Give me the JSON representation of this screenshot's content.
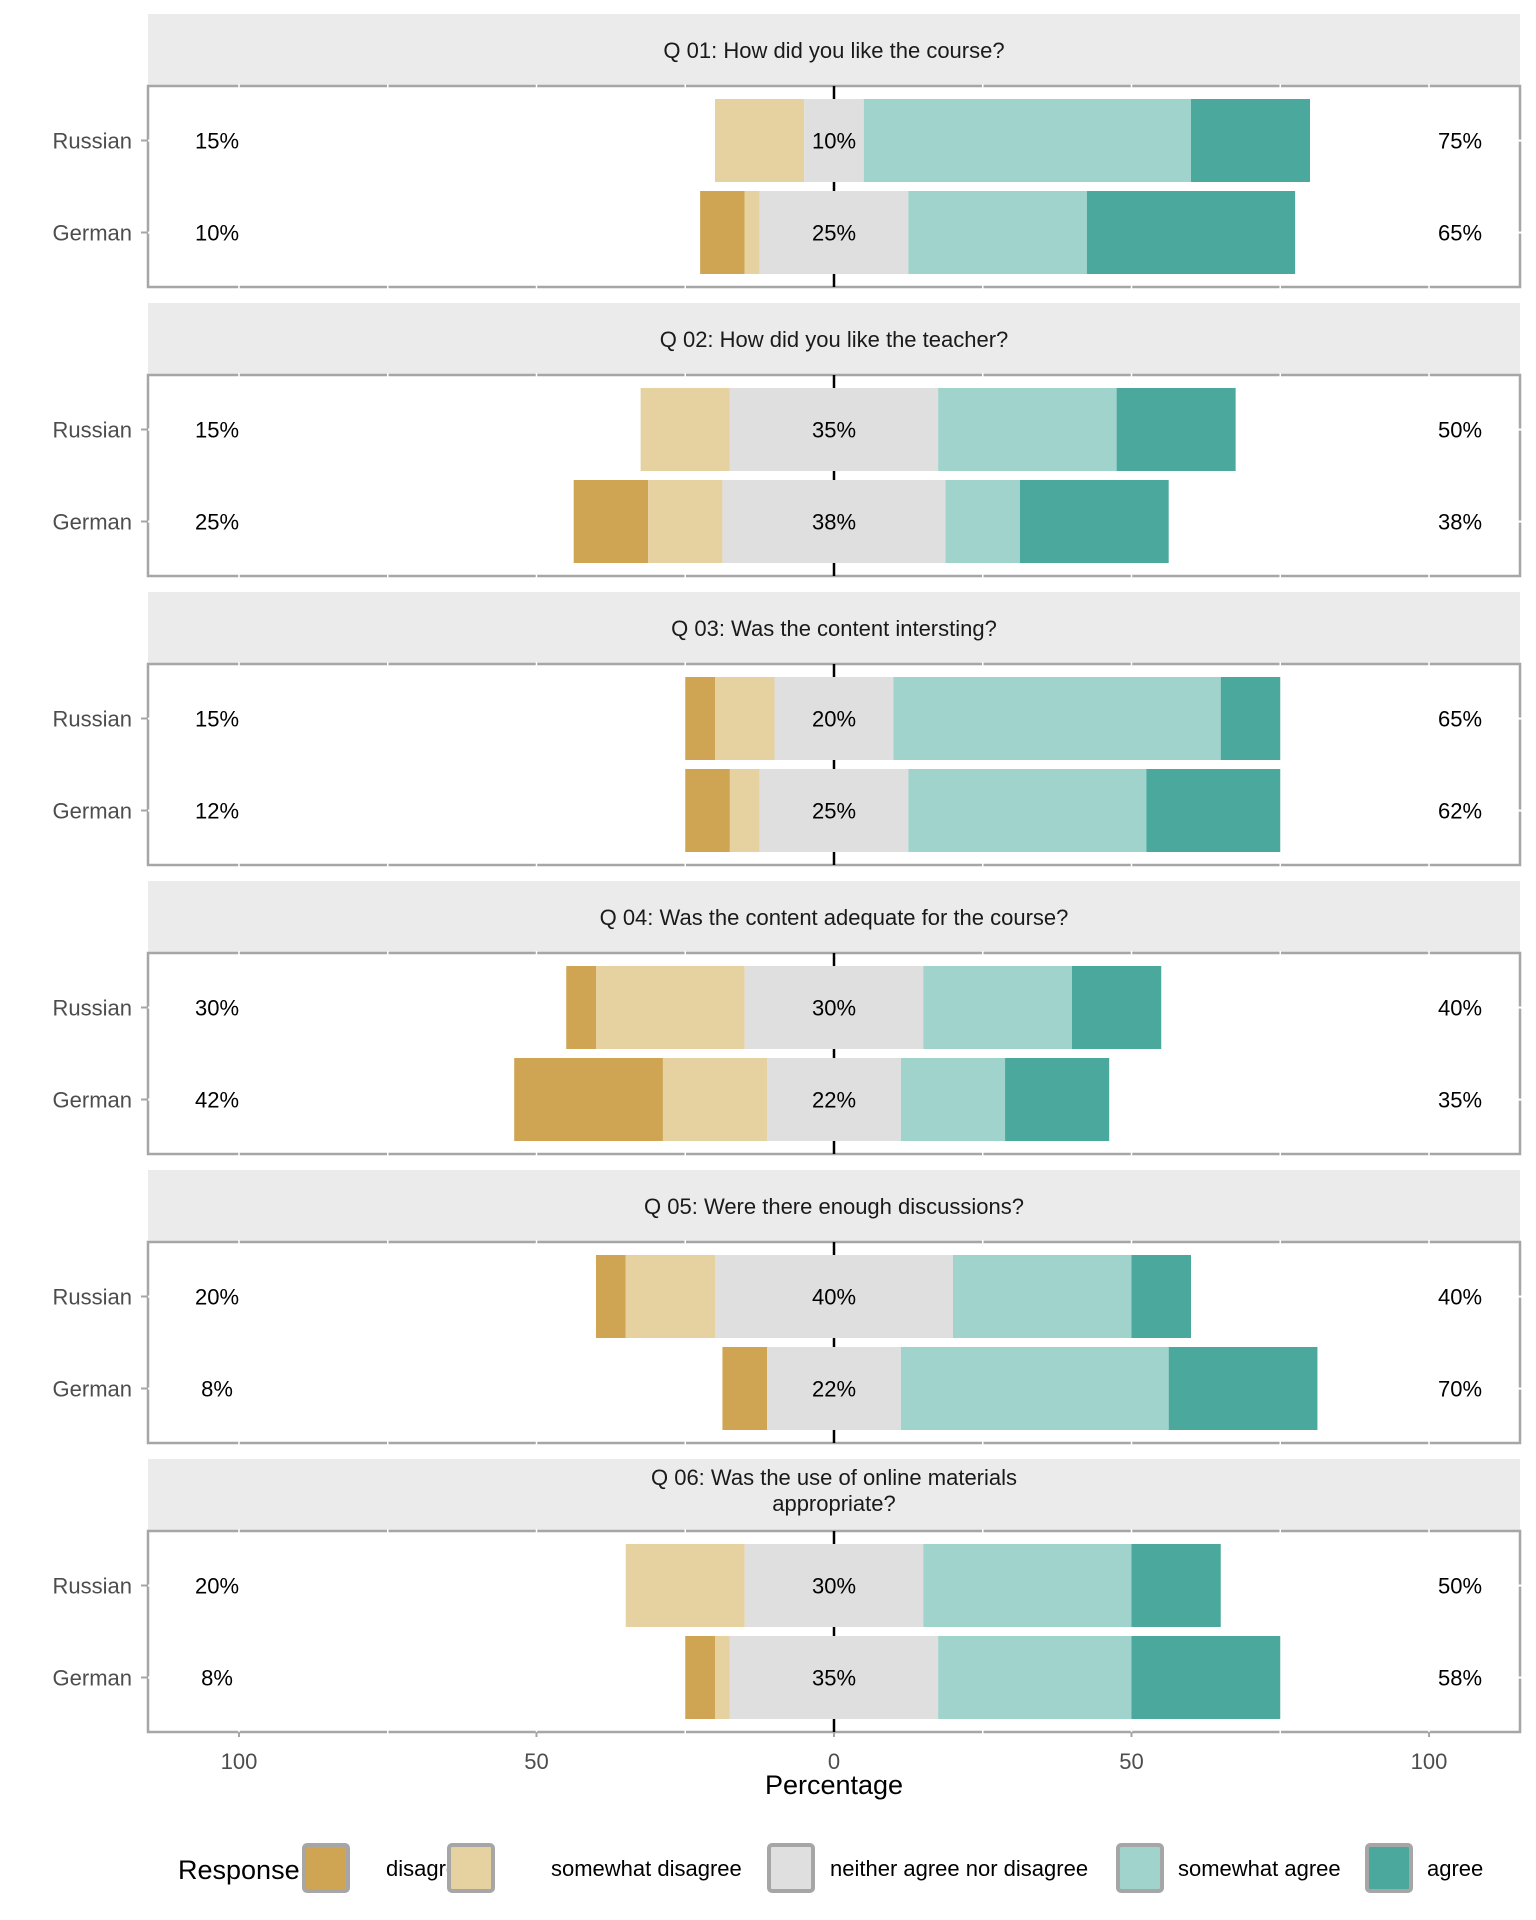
{
  "chart_data": {
    "type": "bar",
    "subtype": "diverging-stacked-horizontal-facetted",
    "xlabel": "Percentage",
    "ylabel": "",
    "xlim": [
      -115,
      115
    ],
    "x_ticks": [
      -100,
      -50,
      0,
      50,
      100
    ],
    "x_tick_labels": [
      "100",
      "50",
      "0",
      "50",
      "100"
    ],
    "grid": true,
    "legend": {
      "title": "Response",
      "placement": "bottom",
      "entries": [
        {
          "name": "disagree",
          "color": "#CFA553"
        },
        {
          "name": "somewhat disagree",
          "color": "#E6D2A1"
        },
        {
          "name": "neither agree nor disagree",
          "color": "#DFDFDF"
        },
        {
          "name": "somewhat agree",
          "color": "#9FD3CC"
        },
        {
          "name": "agree",
          "color": "#4BA89C"
        }
      ]
    },
    "categories": [
      "Russian",
      "German"
    ],
    "series_names": [
      "disagree",
      "somewhat disagree",
      "neither agree nor disagree",
      "somewhat agree",
      "agree"
    ],
    "panels": [
      {
        "title": "Q 01: How did you like the course?",
        "rows": [
          {
            "group": "Russian",
            "values": [
              0,
              15,
              10,
              55,
              20
            ],
            "low_label": "15%",
            "neutral_label": "10%",
            "high_label": "75%"
          },
          {
            "group": "German",
            "values": [
              7.5,
              2.5,
              25,
              30,
              35
            ],
            "low_label": "10%",
            "neutral_label": "25%",
            "high_label": "65%"
          }
        ]
      },
      {
        "title": "Q 02: How did you like the teacher?",
        "rows": [
          {
            "group": "Russian",
            "values": [
              0,
              15,
              35,
              30,
              20
            ],
            "low_label": "15%",
            "neutral_label": "35%",
            "high_label": "50%"
          },
          {
            "group": "German",
            "values": [
              12.5,
              12.5,
              37.5,
              12.5,
              25
            ],
            "low_label": "25%",
            "neutral_label": "38%",
            "high_label": "38%"
          }
        ]
      },
      {
        "title": "Q 03: Was the content intersting?",
        "rows": [
          {
            "group": "Russian",
            "values": [
              5,
              10,
              20,
              55,
              10
            ],
            "low_label": "15%",
            "neutral_label": "20%",
            "high_label": "65%"
          },
          {
            "group": "German",
            "values": [
              7.5,
              5,
              25,
              40,
              22.5
            ],
            "low_label": "12%",
            "neutral_label": "25%",
            "high_label": "62%"
          }
        ]
      },
      {
        "title": "Q 04: Was the content adequate for the course?",
        "rows": [
          {
            "group": "Russian",
            "values": [
              5,
              25,
              30,
              25,
              15
            ],
            "low_label": "30%",
            "neutral_label": "30%",
            "high_label": "40%"
          },
          {
            "group": "German",
            "values": [
              25,
              17.5,
              22.5,
              17.5,
              17.5
            ],
            "low_label": "42%",
            "neutral_label": "22%",
            "high_label": "35%"
          }
        ]
      },
      {
        "title": "Q 05: Were there enough discussions?",
        "rows": [
          {
            "group": "Russian",
            "values": [
              5,
              15,
              40,
              30,
              10
            ],
            "low_label": "20%",
            "neutral_label": "40%",
            "high_label": "40%"
          },
          {
            "group": "German",
            "values": [
              7.5,
              0,
              22.5,
              45,
              25
            ],
            "low_label": "8%",
            "neutral_label": "22%",
            "high_label": "70%"
          }
        ]
      },
      {
        "title": "Q 06: Was the use of online materials appropriate?",
        "title_lines": [
          "Q 06: Was the use of online materials",
          "appropriate?"
        ],
        "rows": [
          {
            "group": "Russian",
            "values": [
              0,
              20,
              30,
              35,
              15
            ],
            "low_label": "20%",
            "neutral_label": "30%",
            "high_label": "50%"
          },
          {
            "group": "German",
            "values": [
              5,
              2.5,
              35,
              32.5,
              25
            ],
            "low_label": "8%",
            "neutral_label": "35%",
            "high_label": "58%"
          }
        ]
      }
    ]
  }
}
